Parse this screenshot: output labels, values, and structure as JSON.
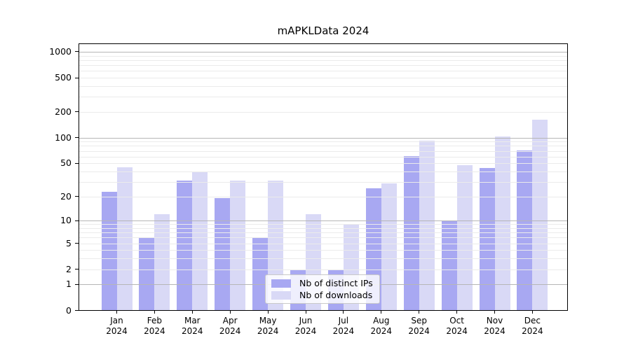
{
  "title": "mAPKLData 2024",
  "chart_data": {
    "type": "bar",
    "title": "mAPKLData 2024",
    "scale": "log1p",
    "categories": [
      "Jan",
      "Feb",
      "Mar",
      "Apr",
      "May",
      "Jun",
      "Jul",
      "Aug",
      "Sep",
      "Oct",
      "Nov",
      "Dec"
    ],
    "category_year": "2024",
    "series": [
      {
        "name": "Nb of distinct IPs",
        "color": "#a8a8f2",
        "values": [
          23,
          6,
          31,
          19,
          6,
          2,
          2,
          25,
          61,
          10,
          44,
          71
        ]
      },
      {
        "name": "Nb of downloads",
        "color": "#d9d9f6",
        "values": [
          45,
          12,
          39,
          31,
          31,
          12,
          9,
          29,
          93,
          47,
          103,
          163
        ]
      }
    ],
    "yticks": [
      0,
      1,
      2,
      5,
      10,
      20,
      50,
      100,
      200,
      500,
      1000
    ],
    "ylim": [
      0,
      1250
    ],
    "grid": "on",
    "grid_major_at": [
      1,
      10,
      100,
      1000
    ],
    "legend_position": "bottom-center",
    "colors": {
      "grid_major": "#b6b6b6",
      "grid_minor": "#ebebeb",
      "axis": "#000000",
      "background": "#ffffff"
    }
  }
}
